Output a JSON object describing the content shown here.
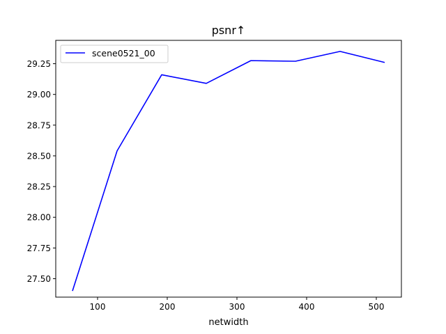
{
  "chart_data": {
    "type": "line",
    "title": "psnr↑",
    "xlabel": "netwidth",
    "ylabel": "",
    "xlim": [
      40,
      536
    ],
    "ylim": [
      27.35,
      29.44
    ],
    "xticks": [
      100,
      200,
      300,
      400,
      500
    ],
    "xtick_labels": [
      "100",
      "200",
      "300",
      "400",
      "500"
    ],
    "yticks": [
      27.5,
      27.75,
      28.0,
      28.25,
      28.5,
      28.75,
      29.0,
      29.25
    ],
    "ytick_labels": [
      "27.50",
      "27.75",
      "28.00",
      "28.25",
      "28.50",
      "28.75",
      "29.00",
      "29.25"
    ],
    "grid": false,
    "legend": {
      "position": "upper-left"
    },
    "series": [
      {
        "name": "scene0521_00",
        "color": "#0000ff",
        "x": [
          64,
          128,
          192,
          256,
          320,
          384,
          448,
          512
        ],
        "y": [
          27.4,
          28.54,
          29.16,
          29.09,
          29.275,
          29.27,
          29.35,
          29.26
        ]
      }
    ]
  }
}
